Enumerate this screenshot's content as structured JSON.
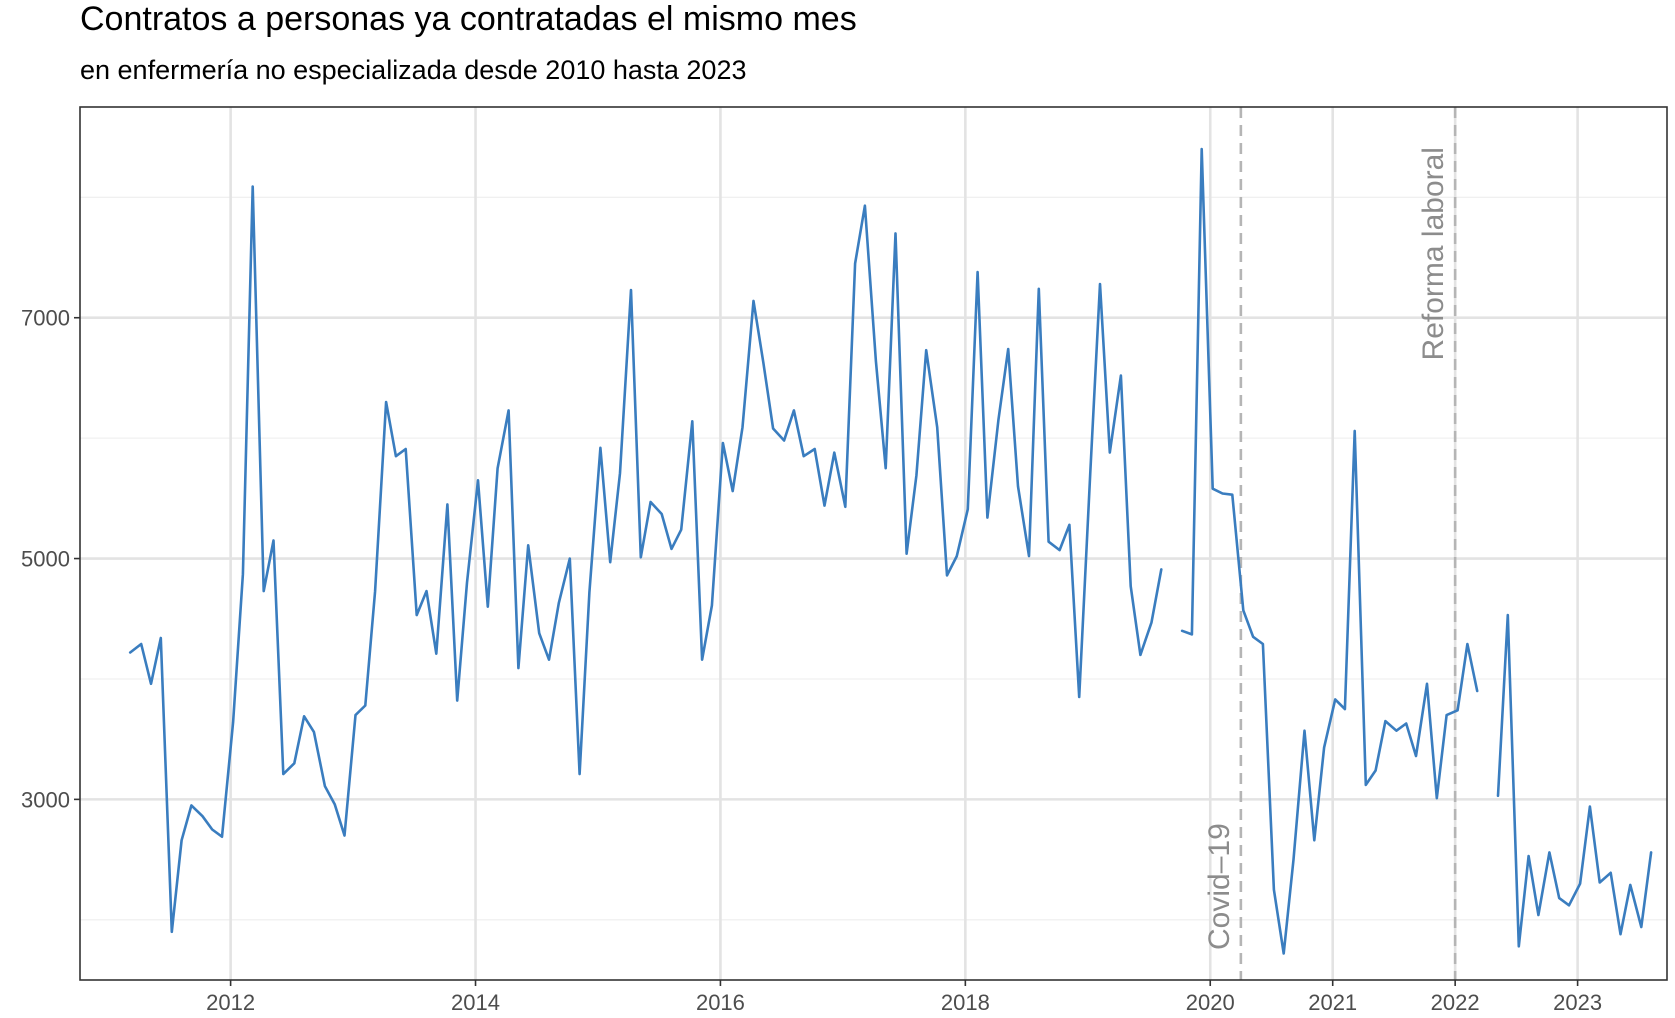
{
  "chart_data": {
    "type": "line",
    "title": "Contratos a personas ya contratadas el mismo mes",
    "subtitle": "en enfermería no especializada desde 2010 hasta 2023",
    "xlabel": "",
    "ylabel": "",
    "x_axis": {
      "range": [
        2010.67,
        2023.63
      ],
      "tick_labels": [
        {
          "label": "2012",
          "value": 2011.9
        },
        {
          "label": "2014",
          "value": 2013.9
        },
        {
          "label": "2016",
          "value": 2015.9
        },
        {
          "label": "2018",
          "value": 2017.9
        },
        {
          "label": "2020",
          "value": 2019.9
        },
        {
          "label": "2021",
          "value": 2020.9
        },
        {
          "label": "2022",
          "value": 2021.9
        },
        {
          "label": "2023",
          "value": 2022.9
        }
      ]
    },
    "y_axis": {
      "range": [
        1500,
        8750
      ],
      "ticks": [
        3000,
        5000,
        7000
      ],
      "minor_ticks": [
        2000,
        4000,
        6000,
        8000
      ]
    },
    "grid": true,
    "line_color": "#3a7dbf",
    "annotations": [
      {
        "label": "Covid–19",
        "x": 2020.15
      },
      {
        "label": "Reforma laboral",
        "x": 2021.9
      }
    ],
    "series": [
      {
        "points": [
          [
            2011.08,
            4220
          ],
          [
            2011.17,
            4290
          ],
          [
            2011.25,
            3960
          ],
          [
            2011.33,
            4340
          ],
          [
            2011.42,
            1900
          ],
          [
            2011.5,
            2660
          ],
          [
            2011.58,
            2950
          ],
          [
            2011.67,
            2860
          ],
          [
            2011.75,
            2750
          ],
          [
            2011.83,
            2690
          ],
          [
            2011.92,
            3640
          ],
          [
            2012.0,
            4870
          ],
          [
            2012.08,
            8090
          ],
          [
            2012.17,
            4730
          ],
          [
            2012.25,
            5150
          ],
          [
            2012.33,
            3210
          ],
          [
            2012.42,
            3300
          ],
          [
            2012.5,
            3690
          ],
          [
            2012.58,
            3560
          ],
          [
            2012.67,
            3110
          ],
          [
            2012.75,
            2960
          ],
          [
            2012.83,
            2700
          ],
          [
            2012.92,
            3700
          ],
          [
            2013.0,
            3780
          ],
          [
            2013.08,
            4730
          ],
          [
            2013.17,
            6300
          ],
          [
            2013.25,
            5850
          ],
          [
            2013.33,
            5910
          ],
          [
            2013.42,
            4530
          ],
          [
            2013.5,
            4730
          ],
          [
            2013.58,
            4210
          ],
          [
            2013.67,
            5450
          ],
          [
            2013.75,
            3820
          ],
          [
            2013.83,
            4800
          ],
          [
            2013.92,
            5650
          ],
          [
            2014.0,
            4600
          ],
          [
            2014.08,
            5750
          ],
          [
            2014.17,
            6230
          ],
          [
            2014.25,
            4090
          ],
          [
            2014.33,
            5110
          ],
          [
            2014.42,
            4380
          ],
          [
            2014.5,
            4160
          ],
          [
            2014.58,
            4630
          ],
          [
            2014.67,
            5000
          ],
          [
            2014.75,
            3210
          ],
          [
            2014.83,
            4720
          ],
          [
            2014.92,
            5920
          ],
          [
            2015.0,
            4970
          ],
          [
            2015.08,
            5710
          ],
          [
            2015.17,
            7230
          ],
          [
            2015.25,
            5010
          ],
          [
            2015.33,
            5470
          ],
          [
            2015.42,
            5370
          ],
          [
            2015.5,
            5080
          ],
          [
            2015.58,
            5240
          ],
          [
            2015.67,
            6140
          ],
          [
            2015.75,
            4160
          ],
          [
            2015.83,
            4610
          ],
          [
            2015.92,
            5960
          ],
          [
            2016.0,
            5560
          ],
          [
            2016.08,
            6090
          ],
          [
            2016.17,
            7140
          ],
          [
            2016.25,
            6630
          ],
          [
            2016.33,
            6080
          ],
          [
            2016.42,
            5980
          ],
          [
            2016.5,
            6230
          ],
          [
            2016.58,
            5850
          ],
          [
            2016.67,
            5910
          ],
          [
            2016.75,
            5440
          ],
          [
            2016.83,
            5880
          ],
          [
            2016.92,
            5430
          ],
          [
            2017.0,
            7450
          ],
          [
            2017.08,
            7930
          ],
          [
            2017.17,
            6640
          ],
          [
            2017.25,
            5750
          ],
          [
            2017.33,
            7700
          ],
          [
            2017.42,
            5040
          ],
          [
            2017.5,
            5690
          ],
          [
            2017.58,
            6730
          ],
          [
            2017.67,
            6090
          ],
          [
            2017.75,
            4860
          ],
          [
            2017.83,
            5020
          ],
          [
            2017.92,
            5410
          ],
          [
            2018.0,
            7380
          ],
          [
            2018.08,
            5340
          ],
          [
            2018.17,
            6150
          ],
          [
            2018.25,
            6740
          ],
          [
            2018.33,
            5600
          ],
          [
            2018.42,
            5020
          ],
          [
            2018.5,
            7240
          ],
          [
            2018.58,
            5140
          ],
          [
            2018.67,
            5070
          ],
          [
            2018.75,
            5280
          ],
          [
            2018.83,
            3850
          ],
          [
            2018.92,
            5700
          ],
          [
            2019.0,
            7280
          ],
          [
            2019.08,
            5880
          ],
          [
            2019.17,
            6520
          ],
          [
            2019.25,
            4770
          ],
          [
            2019.33,
            4200
          ],
          [
            2019.42,
            4470
          ],
          [
            2019.5,
            4910
          ],
          null,
          [
            2019.67,
            4400
          ],
          [
            2019.75,
            4370
          ],
          [
            2019.83,
            8400
          ],
          [
            2019.92,
            5580
          ],
          [
            2020.0,
            5540
          ],
          [
            2020.08,
            5530
          ],
          [
            2020.17,
            4570
          ],
          [
            2020.25,
            4350
          ],
          [
            2020.33,
            4290
          ],
          [
            2020.42,
            2250
          ],
          [
            2020.5,
            1720
          ],
          [
            2020.58,
            2500
          ],
          [
            2020.67,
            3570
          ],
          [
            2020.75,
            2660
          ],
          [
            2020.83,
            3430
          ],
          [
            2020.92,
            3830
          ],
          [
            2021.0,
            3750
          ],
          [
            2021.08,
            6060
          ],
          [
            2021.17,
            3120
          ],
          [
            2021.25,
            3240
          ],
          [
            2021.33,
            3650
          ],
          [
            2021.42,
            3570
          ],
          [
            2021.5,
            3630
          ],
          [
            2021.58,
            3360
          ],
          [
            2021.67,
            3960
          ],
          [
            2021.75,
            3010
          ],
          [
            2021.83,
            3700
          ],
          [
            2021.92,
            3740
          ],
          [
            2022.0,
            4290
          ],
          [
            2022.08,
            3900
          ],
          null,
          [
            2022.25,
            3030
          ],
          [
            2022.33,
            4530
          ],
          [
            2022.42,
            1780
          ],
          [
            2022.5,
            2530
          ],
          [
            2022.58,
            2040
          ],
          [
            2022.67,
            2560
          ],
          [
            2022.75,
            2180
          ],
          [
            2022.83,
            2120
          ],
          [
            2022.92,
            2300
          ],
          [
            2023.0,
            2940
          ],
          [
            2023.08,
            2310
          ],
          [
            2023.17,
            2390
          ],
          [
            2023.25,
            1880
          ],
          [
            2023.33,
            2290
          ],
          [
            2023.42,
            1940
          ],
          [
            2023.5,
            2560
          ]
        ]
      }
    ]
  }
}
